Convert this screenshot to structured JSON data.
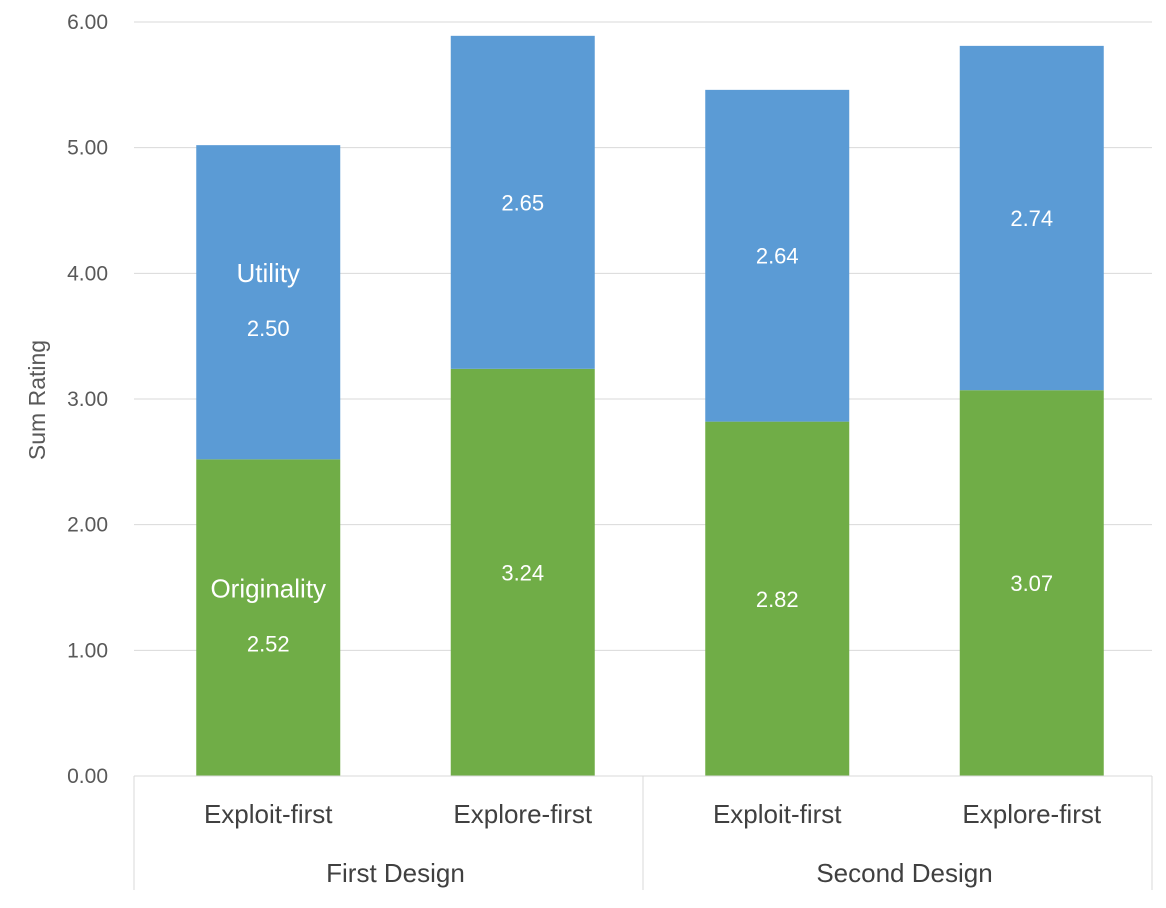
{
  "chart_data": {
    "type": "bar",
    "stacked": true,
    "ylabel": "Sum Rating",
    "ylim": [
      0,
      6
    ],
    "yticks": [
      "0.00",
      "1.00",
      "2.00",
      "3.00",
      "4.00",
      "5.00",
      "6.00"
    ],
    "grid": true,
    "groups": [
      {
        "label": "First Design",
        "categories": [
          "Exploit-first",
          "Explore-first"
        ]
      },
      {
        "label": "Second Design",
        "categories": [
          "Exploit-first",
          "Explore-first"
        ]
      }
    ],
    "categories": [
      "Exploit-first",
      "Explore-first",
      "Exploit-first",
      "Explore-first"
    ],
    "series": [
      {
        "name": "Originality",
        "color": "#70AD47",
        "values": [
          2.52,
          3.24,
          2.82,
          3.07
        ],
        "labels": [
          "2.52",
          "3.24",
          "2.82",
          "3.07"
        ]
      },
      {
        "name": "Utility",
        "color": "#5B9BD5",
        "values": [
          2.5,
          2.65,
          2.64,
          2.74
        ],
        "labels": [
          "2.50",
          "2.65",
          "2.64",
          "2.74"
        ]
      }
    ]
  }
}
